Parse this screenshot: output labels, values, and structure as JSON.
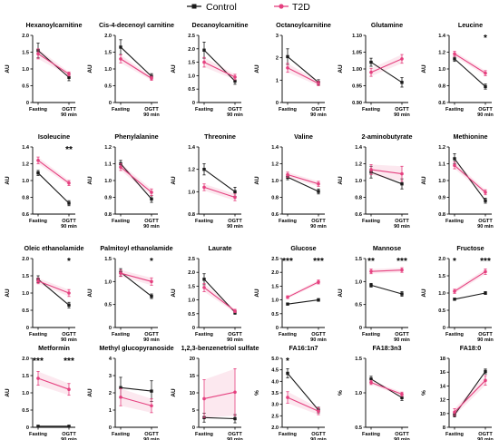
{
  "legend": [
    {
      "name": "Control",
      "color": "#1a1a1a",
      "marker": "square"
    },
    {
      "name": "T2D",
      "color": "#e5407f",
      "marker": "circle"
    }
  ],
  "chart_data": [
    {
      "type": "line",
      "title": "Hexanoylcarnitine",
      "ylabel": "AU",
      "ylim": [
        0,
        2.0
      ],
      "yticks": [
        "0",
        "0.5",
        "1.0",
        "1.5",
        "2.0"
      ],
      "categories": [
        "Fasting",
        "OGTT\n90 min"
      ],
      "series": [
        {
          "name": "Control",
          "values": [
            1.55,
            0.75
          ],
          "err": [
            0.22,
            0.1
          ]
        },
        {
          "name": "T2D",
          "values": [
            1.45,
            0.85
          ],
          "err": [
            0.15,
            0.06
          ]
        }
      ],
      "annotations": [
        "",
        ""
      ]
    },
    {
      "type": "line",
      "title": "Cis-4-decenoyl carnitine",
      "ylabel": "AU",
      "ylim": [
        0,
        2.0
      ],
      "yticks": [
        "0",
        "0.5",
        "1.0",
        "1.5",
        "2.0"
      ],
      "categories": [
        "Fasting",
        "OGTT\n90 min"
      ],
      "series": [
        {
          "name": "Control",
          "values": [
            1.65,
            0.78
          ],
          "err": [
            0.22,
            0.08
          ]
        },
        {
          "name": "T2D",
          "values": [
            1.3,
            0.72
          ],
          "err": [
            0.12,
            0.06
          ]
        }
      ],
      "annotations": [
        "",
        ""
      ]
    },
    {
      "type": "line",
      "title": "Decanoylcarnitine",
      "ylabel": "AU",
      "ylim": [
        0,
        2.5
      ],
      "yticks": [
        "0",
        "0.5",
        "1.0",
        "1.5",
        "2.0",
        "2.5"
      ],
      "categories": [
        "Fasting",
        "OGTT\n90 min"
      ],
      "series": [
        {
          "name": "Control",
          "values": [
            1.95,
            0.8
          ],
          "err": [
            0.3,
            0.12
          ]
        },
        {
          "name": "T2D",
          "values": [
            1.5,
            0.95
          ],
          "err": [
            0.18,
            0.1
          ]
        }
      ],
      "annotations": [
        "",
        ""
      ]
    },
    {
      "type": "line",
      "title": "Octanoylcarnitine",
      "ylabel": "AU",
      "ylim": [
        0,
        3
      ],
      "yticks": [
        "0",
        "1",
        "2",
        "3"
      ],
      "categories": [
        "Fasting",
        "OGTT\n90 min"
      ],
      "series": [
        {
          "name": "Control",
          "values": [
            2.05,
            0.9
          ],
          "err": [
            0.35,
            0.12
          ]
        },
        {
          "name": "T2D",
          "values": [
            1.55,
            0.85
          ],
          "err": [
            0.2,
            0.1
          ]
        }
      ],
      "annotations": [
        "",
        ""
      ]
    },
    {
      "type": "line",
      "title": "Glutamine",
      "ylabel": "AU",
      "ylim": [
        0.9,
        1.1
      ],
      "yticks": [
        "0.90",
        "0.95",
        "1.00",
        "1.05",
        "1.10"
      ],
      "categories": [
        "Fasting",
        "OGTT\n90 min"
      ],
      "series": [
        {
          "name": "Control",
          "values": [
            1.02,
            0.96
          ],
          "err": [
            0.012,
            0.014
          ]
        },
        {
          "name": "T2D",
          "values": [
            0.99,
            1.03
          ],
          "err": [
            0.012,
            0.013
          ]
        }
      ],
      "annotations": [
        "",
        ""
      ]
    },
    {
      "type": "line",
      "title": "Leucine",
      "ylabel": "AU",
      "ylim": [
        0.6,
        1.4
      ],
      "yticks": [
        "0.6",
        "0.8",
        "1.0",
        "1.2",
        "1.4"
      ],
      "categories": [
        "Fasting",
        "OGTT\n90 min"
      ],
      "series": [
        {
          "name": "Control",
          "values": [
            1.12,
            0.79
          ],
          "err": [
            0.03,
            0.03
          ]
        },
        {
          "name": "T2D",
          "values": [
            1.18,
            0.95
          ],
          "err": [
            0.03,
            0.03
          ]
        }
      ],
      "annotations": [
        "",
        "*"
      ]
    },
    {
      "type": "line",
      "title": "Isoleucine",
      "ylabel": "AU",
      "ylim": [
        0.6,
        1.4
      ],
      "yticks": [
        "0.6",
        "0.8",
        "1.0",
        "1.2",
        "1.4"
      ],
      "categories": [
        "Fasting",
        "OGTT\n90 min"
      ],
      "series": [
        {
          "name": "Control",
          "values": [
            1.09,
            0.73
          ],
          "err": [
            0.03,
            0.03
          ]
        },
        {
          "name": "T2D",
          "values": [
            1.24,
            0.97
          ],
          "err": [
            0.04,
            0.03
          ]
        }
      ],
      "annotations": [
        "",
        "**"
      ]
    },
    {
      "type": "line",
      "title": "Phenylalanine",
      "ylabel": "AU",
      "ylim": [
        0.8,
        1.2
      ],
      "yticks": [
        "0.8",
        "0.9",
        "1.0",
        "1.1",
        "1.2"
      ],
      "categories": [
        "Fasting",
        "OGTT\n90 min"
      ],
      "series": [
        {
          "name": "Control",
          "values": [
            1.1,
            0.89
          ],
          "err": [
            0.02,
            0.02
          ]
        },
        {
          "name": "T2D",
          "values": [
            1.08,
            0.93
          ],
          "err": [
            0.02,
            0.02
          ]
        }
      ],
      "annotations": [
        "",
        ""
      ]
    },
    {
      "type": "line",
      "title": "Threonine",
      "ylabel": "AU",
      "ylim": [
        0.8,
        1.4
      ],
      "yticks": [
        "0.8",
        "1.0",
        "1.2",
        "1.4"
      ],
      "categories": [
        "Fasting",
        "OGTT\n90 min"
      ],
      "series": [
        {
          "name": "Control",
          "values": [
            1.2,
            1.0
          ],
          "err": [
            0.05,
            0.04
          ]
        },
        {
          "name": "T2D",
          "values": [
            1.04,
            0.95
          ],
          "err": [
            0.03,
            0.03
          ]
        }
      ],
      "annotations": [
        "",
        ""
      ]
    },
    {
      "type": "line",
      "title": "Valine",
      "ylabel": "AU",
      "ylim": [
        0.6,
        1.4
      ],
      "yticks": [
        "0.6",
        "0.8",
        "1.0",
        "1.2",
        "1.4"
      ],
      "categories": [
        "Fasting",
        "OGTT\n90 min"
      ],
      "series": [
        {
          "name": "Control",
          "values": [
            1.04,
            0.87
          ],
          "err": [
            0.03,
            0.03
          ]
        },
        {
          "name": "T2D",
          "values": [
            1.07,
            0.96
          ],
          "err": [
            0.03,
            0.03
          ]
        }
      ],
      "annotations": [
        "",
        ""
      ]
    },
    {
      "type": "line",
      "title": "2-aminobutyrate",
      "ylabel": "AU",
      "ylim": [
        0.6,
        1.4
      ],
      "yticks": [
        "0.6",
        "0.8",
        "1.0",
        "1.2",
        "1.4"
      ],
      "categories": [
        "Fasting",
        "OGTT\n90 min"
      ],
      "series": [
        {
          "name": "Control",
          "values": [
            1.1,
            0.96
          ],
          "err": [
            0.07,
            0.06
          ]
        },
        {
          "name": "T2D",
          "values": [
            1.13,
            1.08
          ],
          "err": [
            0.06,
            0.09
          ]
        }
      ],
      "annotations": [
        "",
        ""
      ]
    },
    {
      "type": "line",
      "title": "Methionine",
      "ylabel": "AU",
      "ylim": [
        0.8,
        1.2
      ],
      "yticks": [
        "0.8",
        "0.9",
        "1.0",
        "1.1",
        "1.2"
      ],
      "categories": [
        "Fasting",
        "OGTT\n90 min"
      ],
      "series": [
        {
          "name": "Control",
          "values": [
            1.13,
            0.88
          ],
          "err": [
            0.03,
            0.015
          ]
        },
        {
          "name": "T2D",
          "values": [
            1.09,
            0.93
          ],
          "err": [
            0.02,
            0.015
          ]
        }
      ],
      "annotations": [
        "",
        ""
      ]
    },
    {
      "type": "line",
      "title": "Oleic ethanolamide",
      "ylabel": "AU",
      "ylim": [
        0,
        2.0
      ],
      "yticks": [
        "0",
        "0.5",
        "1.0",
        "1.5",
        "2.0"
      ],
      "categories": [
        "Fasting",
        "OGTT\n90 min"
      ],
      "series": [
        {
          "name": "Control",
          "values": [
            1.4,
            0.65
          ],
          "err": [
            0.1,
            0.08
          ]
        },
        {
          "name": "T2D",
          "values": [
            1.35,
            1.0
          ],
          "err": [
            0.08,
            0.1
          ]
        }
      ],
      "annotations": [
        "",
        "*"
      ]
    },
    {
      "type": "line",
      "title": "Palmitoyl ethanolamide",
      "ylabel": "AU",
      "ylim": [
        0,
        1.5
      ],
      "yticks": [
        "0",
        "0.5",
        "1.0",
        "1.5"
      ],
      "categories": [
        "Fasting",
        "OGTT\n90 min"
      ],
      "series": [
        {
          "name": "Control",
          "values": [
            1.2,
            0.68
          ],
          "err": [
            0.08,
            0.05
          ]
        },
        {
          "name": "T2D",
          "values": [
            1.18,
            1.0
          ],
          "err": [
            0.07,
            0.08
          ]
        }
      ],
      "annotations": [
        "",
        "*"
      ]
    },
    {
      "type": "line",
      "title": "Laurate",
      "ylabel": "AU",
      "ylim": [
        0,
        2.5
      ],
      "yticks": [
        "0",
        "0.5",
        "1.0",
        "1.5",
        "2.0",
        "2.5"
      ],
      "categories": [
        "Fasting",
        "OGTT\n90 min"
      ],
      "series": [
        {
          "name": "Control",
          "values": [
            1.75,
            0.55
          ],
          "err": [
            0.2,
            0.07
          ]
        },
        {
          "name": "T2D",
          "values": [
            1.45,
            0.6
          ],
          "err": [
            0.15,
            0.06
          ]
        }
      ],
      "annotations": [
        "",
        ""
      ]
    },
    {
      "type": "line",
      "title": "Glucose",
      "ylabel": "AU",
      "ylim": [
        0,
        2.5
      ],
      "yticks": [
        "0",
        "0.5",
        "1.0",
        "1.5",
        "2.0",
        "2.5"
      ],
      "categories": [
        "Fasting",
        "OGTT\n90 min"
      ],
      "series": [
        {
          "name": "Control",
          "values": [
            0.85,
            1.0
          ],
          "err": [
            0.03,
            0.05
          ]
        },
        {
          "name": "T2D",
          "values": [
            1.1,
            1.65
          ],
          "err": [
            0.05,
            0.07
          ]
        }
      ],
      "annotations": [
        "***",
        "***"
      ]
    },
    {
      "type": "line",
      "title": "Mannose",
      "ylabel": "AU",
      "ylim": [
        0,
        1.5
      ],
      "yticks": [
        "0",
        "0.5",
        "1.0",
        "1.5"
      ],
      "categories": [
        "Fasting",
        "OGTT\n90 min"
      ],
      "series": [
        {
          "name": "Control",
          "values": [
            0.92,
            0.73
          ],
          "err": [
            0.04,
            0.05
          ]
        },
        {
          "name": "T2D",
          "values": [
            1.22,
            1.25
          ],
          "err": [
            0.05,
            0.05
          ]
        }
      ],
      "annotations": [
        "**",
        "***"
      ]
    },
    {
      "type": "line",
      "title": "Fructose",
      "ylabel": "AU",
      "ylim": [
        0,
        2.0
      ],
      "yticks": [
        "0",
        "0.5",
        "1.0",
        "1.5",
        "2.0"
      ],
      "categories": [
        "Fasting",
        "OGTT\n90 min"
      ],
      "series": [
        {
          "name": "Control",
          "values": [
            0.82,
            1.0
          ],
          "err": [
            0.03,
            0.04
          ]
        },
        {
          "name": "T2D",
          "values": [
            1.05,
            1.62
          ],
          "err": [
            0.06,
            0.08
          ]
        }
      ],
      "annotations": [
        "*",
        "***"
      ]
    },
    {
      "type": "line",
      "title": "Metformin",
      "ylabel": "AU",
      "ylim": [
        0,
        2.0
      ],
      "yticks": [
        "0",
        "0.5",
        "1.0",
        "1.5",
        "2.0"
      ],
      "categories": [
        "Fasting",
        "OGTT\n90 min"
      ],
      "series": [
        {
          "name": "Control",
          "values": [
            0.03,
            0.03
          ],
          "err": [
            0.01,
            0.01
          ]
        },
        {
          "name": "T2D",
          "values": [
            1.42,
            1.1
          ],
          "err": [
            0.2,
            0.17
          ]
        }
      ],
      "annotations": [
        "***",
        "***"
      ]
    },
    {
      "type": "line",
      "title": "Methyl glucopyranoside",
      "ylabel": "AU",
      "ylim": [
        0,
        4
      ],
      "yticks": [
        "0",
        "1",
        "2",
        "3",
        "4"
      ],
      "categories": [
        "Fasting",
        "OGTT\n90 min"
      ],
      "series": [
        {
          "name": "Control",
          "values": [
            2.3,
            2.1
          ],
          "err": [
            0.6,
            0.6
          ]
        },
        {
          "name": "T2D",
          "values": [
            1.75,
            1.25
          ],
          "err": [
            0.5,
            0.4
          ]
        }
      ],
      "annotations": [
        "",
        ""
      ]
    },
    {
      "type": "line",
      "title": "1,2,3-benzenetriol sulfate",
      "ylabel": "AU",
      "ylim": [
        0,
        20
      ],
      "yticks": [
        "0",
        "5",
        "10",
        "15",
        "20"
      ],
      "categories": [
        "Fasting",
        "OGTT\n90 min"
      ],
      "series": [
        {
          "name": "Control",
          "values": [
            2.8,
            2.5
          ],
          "err": [
            1.3,
            1.2
          ]
        },
        {
          "name": "T2D",
          "values": [
            8.3,
            10.2
          ],
          "err": [
            5.5,
            6.8
          ]
        }
      ],
      "annotations": [
        "",
        ""
      ]
    },
    {
      "type": "line",
      "title": "FA16:1n7",
      "ylabel": "%",
      "ylim": [
        2.0,
        5.0
      ],
      "yticks": [
        "2.0",
        "2.5",
        "3.0",
        "3.5",
        "4.0",
        "4.5",
        "5.0"
      ],
      "categories": [
        "Fasting",
        "OGTT\n90 min"
      ],
      "series": [
        {
          "name": "Control",
          "values": [
            4.35,
            2.75
          ],
          "err": [
            0.2,
            0.12
          ]
        },
        {
          "name": "T2D",
          "values": [
            3.3,
            2.7
          ],
          "err": [
            0.25,
            0.15
          ]
        }
      ],
      "annotations": [
        "*",
        ""
      ]
    },
    {
      "type": "line",
      "title": "FA18:3n3",
      "ylabel": "%",
      "ylim": [
        0.5,
        1.5
      ],
      "yticks": [
        "0.5",
        "1.0",
        "1.5"
      ],
      "categories": [
        "Fasting",
        "OGTT\n90 min"
      ],
      "series": [
        {
          "name": "Control",
          "values": [
            1.2,
            0.93
          ],
          "err": [
            0.04,
            0.04
          ]
        },
        {
          "name": "T2D",
          "values": [
            1.15,
            0.98
          ],
          "err": [
            0.03,
            0.03
          ]
        }
      ],
      "annotations": [
        "",
        ""
      ]
    },
    {
      "type": "line",
      "title": "FA18:0",
      "ylabel": "%",
      "ylim": [
        8,
        18
      ],
      "yticks": [
        "8",
        "10",
        "12",
        "14",
        "16",
        "18"
      ],
      "categories": [
        "Fasting",
        "OGTT\n90 min"
      ],
      "series": [
        {
          "name": "Control",
          "values": [
            9.8,
            16.1
          ],
          "err": [
            0.3,
            0.35
          ]
        },
        {
          "name": "T2D",
          "values": [
            10.2,
            14.8
          ],
          "err": [
            0.5,
            0.7
          ]
        }
      ],
      "annotations": [
        "",
        ""
      ]
    }
  ]
}
